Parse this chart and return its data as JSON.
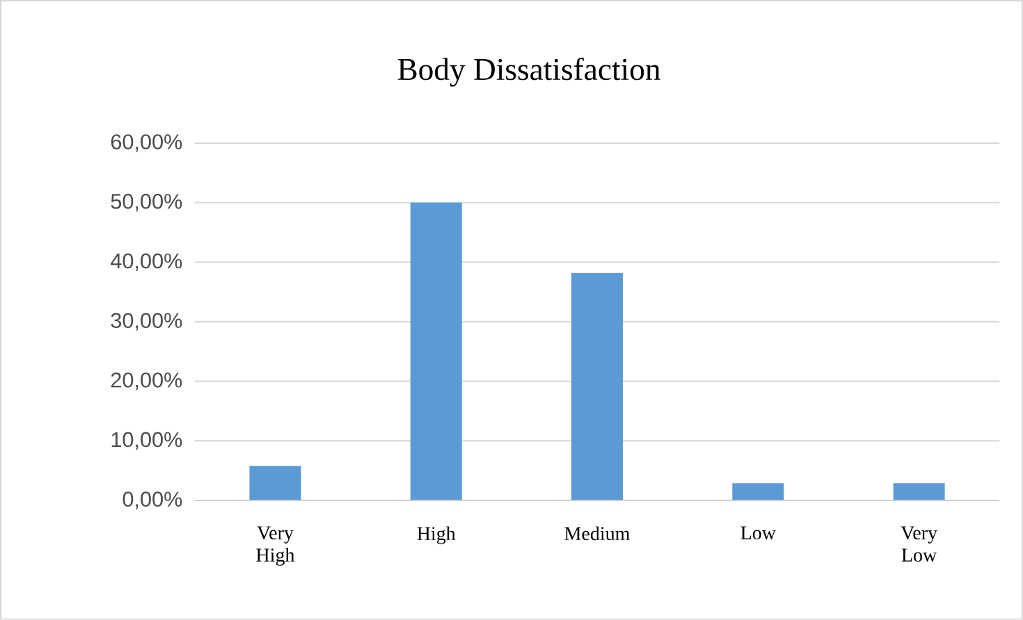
{
  "chart_data": {
    "type": "bar",
    "title": "Body Dissatisfaction",
    "categories": [
      "Very High",
      "High",
      "Medium",
      "Low",
      "Very Low"
    ],
    "values": [
      5.8,
      50,
      38.2,
      2.9,
      2.9
    ],
    "color": "#5b9bd5",
    "ylim": [
      0,
      60
    ],
    "yticks": [
      {
        "value": 0,
        "label": "0,00%"
      },
      {
        "value": 10,
        "label": "10,00%"
      },
      {
        "value": 20,
        "label": "20,00%"
      },
      {
        "value": 30,
        "label": "30,00%"
      },
      {
        "value": 40,
        "label": "40,00%"
      },
      {
        "value": 50,
        "label": "50,00%"
      },
      {
        "value": 60,
        "label": "60,00%"
      }
    ],
    "grid": "y"
  }
}
